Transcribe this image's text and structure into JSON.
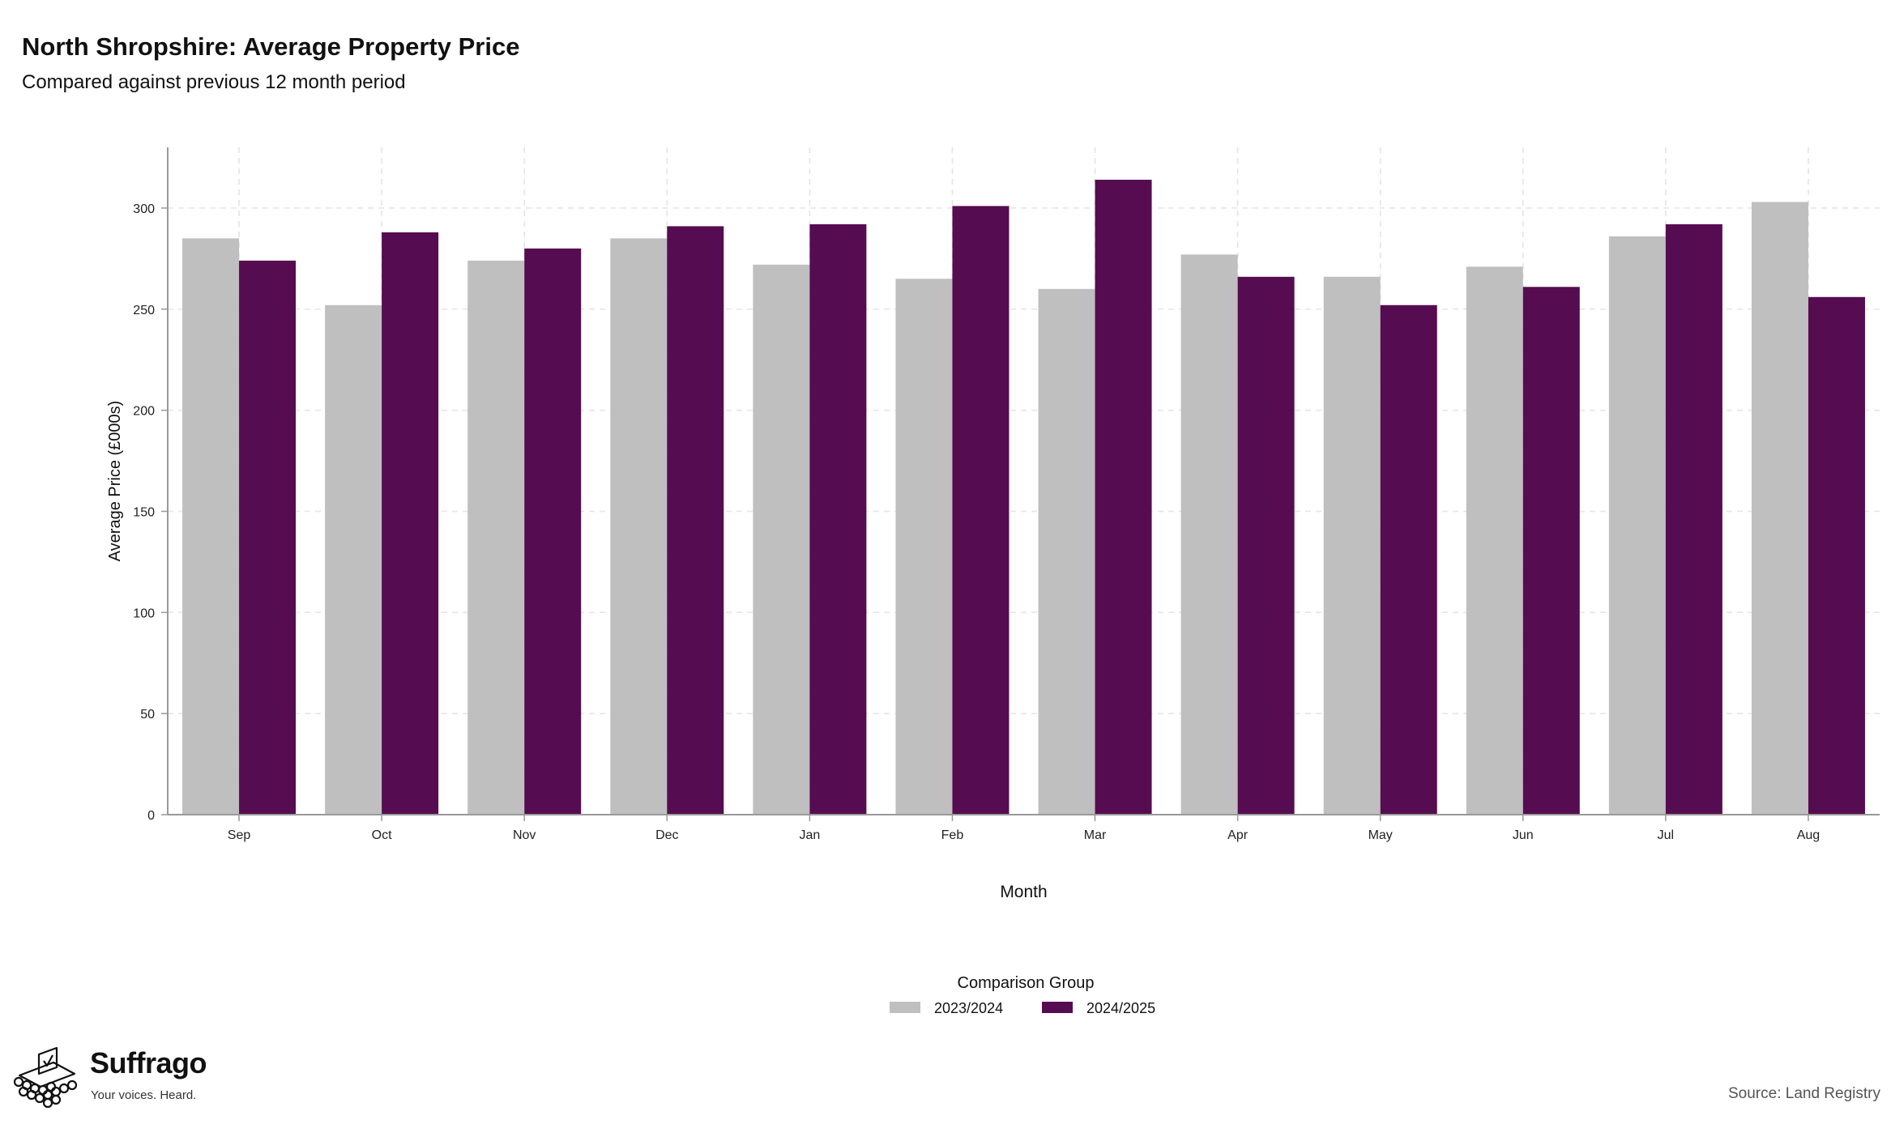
{
  "title": "North Shropshire: Average Property Price",
  "subtitle": "Compared against previous 12 month period",
  "source": "Source: Land Registry",
  "logo": {
    "name": "Suffrago",
    "tagline": "Your voices. Heard."
  },
  "colors": {
    "series_prev": "#bfbfbf",
    "series_curr": "#560c50",
    "grid": "#dcdcdc",
    "axis": "#999999"
  },
  "chart_data": {
    "type": "bar",
    "xlabel": "Month",
    "ylabel": "Average Price (£000s)",
    "ylim": [
      0,
      330
    ],
    "yticks": [
      0,
      50,
      100,
      150,
      200,
      250,
      300
    ],
    "grid": true,
    "legend": {
      "title": "Comparison Group",
      "placement": "bottom-center"
    },
    "categories": [
      "Sep",
      "Oct",
      "Nov",
      "Dec",
      "Jan",
      "Feb",
      "Mar",
      "Apr",
      "May",
      "Jun",
      "Jul",
      "Aug"
    ],
    "series": [
      {
        "name": "2023/2024",
        "color": "#bfbfbf",
        "values": [
          285,
          252,
          274,
          285,
          272,
          265,
          260,
          277,
          266,
          271,
          286,
          303
        ]
      },
      {
        "name": "2024/2025",
        "color": "#560c50",
        "values": [
          274,
          288,
          280,
          291,
          292,
          301,
          314,
          266,
          252,
          261,
          292,
          256
        ]
      }
    ]
  }
}
